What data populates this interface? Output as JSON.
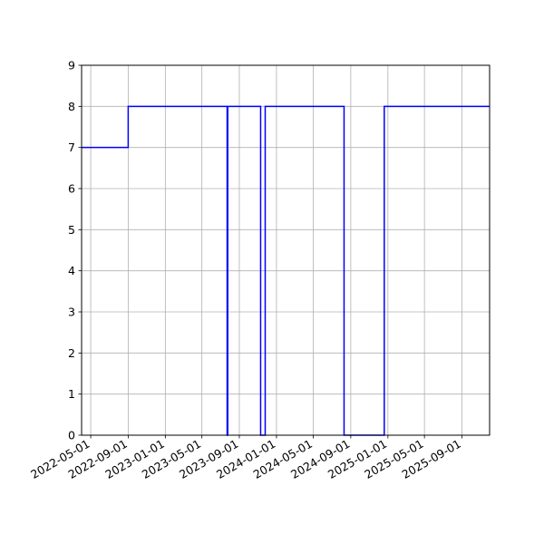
{
  "chart_data": {
    "type": "line",
    "step": "post",
    "x": [
      "2022-04-01",
      "2022-09-01",
      "2023-07-23",
      "2023-07-25",
      "2023-11-10",
      "2023-11-25",
      "2024-08-10",
      "2024-08-12",
      "2024-12-20",
      "2025-12-01"
    ],
    "y": [
      7,
      8,
      0,
      8,
      0,
      8,
      0,
      0,
      8,
      8
    ],
    "series_color": "#0000ff",
    "xlim": [
      "2022-04-01",
      "2025-12-01"
    ],
    "ylim": [
      0,
      9
    ],
    "x_ticks": [
      "2022-05-01",
      "2022-09-01",
      "2023-01-01",
      "2023-05-01",
      "2023-09-01",
      "2024-01-01",
      "2024-05-01",
      "2024-09-01",
      "2025-01-01",
      "2025-05-01",
      "2025-09-01"
    ],
    "y_ticks": [
      0,
      1,
      2,
      3,
      4,
      5,
      6,
      7,
      8,
      9
    ],
    "grid": true,
    "title": "",
    "xlabel": "",
    "ylabel": ""
  }
}
